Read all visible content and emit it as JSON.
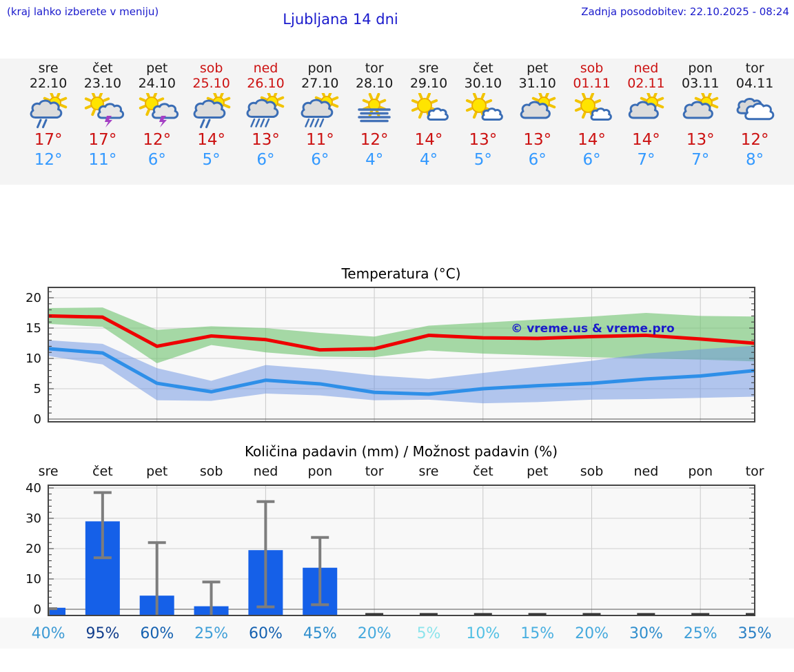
{
  "header": {
    "hint": "(kraj lahko izberete v meniju)",
    "title": "Ljubljana 14 dni",
    "updated": "Zadnja posodobitev: 22.10.2025 - 08:24"
  },
  "colors": {
    "link_blue": "#1a1acc",
    "weekend_red": "#cc1111",
    "tmax_red": "#cc1111",
    "tmin_blue": "#3399ff",
    "strip_bg": "#f4f4f4",
    "plot_bg": "#f8f8f8",
    "grid": "#d0d0d0",
    "border": "#444444",
    "zero_line": "#555555",
    "bar_blue": "#1560e8",
    "error_gray": "#7d7d7d",
    "zero_dash": "#333333",
    "cloud_outline": "#3a6db5",
    "sun_yellow": "#ffe400",
    "lightning_purple": "#a43fc4"
  },
  "forecast": {
    "days": [
      {
        "name": "sre",
        "date": "22.10",
        "weekend": false,
        "icon": "sun-cloud-rain",
        "tmax": "17°",
        "tmin": "12°"
      },
      {
        "name": "čet",
        "date": "23.10",
        "weekend": false,
        "icon": "sun-cloud-storm",
        "tmax": "17°",
        "tmin": "11°"
      },
      {
        "name": "pet",
        "date": "24.10",
        "weekend": false,
        "icon": "sun-cloud-storm",
        "tmax": "12°",
        "tmin": "6°"
      },
      {
        "name": "sob",
        "date": "25.10",
        "weekend": true,
        "icon": "sun-cloud-rain",
        "tmax": "14°",
        "tmin": "5°"
      },
      {
        "name": "ned",
        "date": "26.10",
        "weekend": true,
        "icon": "sun-cloud-heavy-rain",
        "tmax": "13°",
        "tmin": "6°"
      },
      {
        "name": "pon",
        "date": "27.10",
        "weekend": false,
        "icon": "sun-cloud-heavy-rain",
        "tmax": "11°",
        "tmin": "6°"
      },
      {
        "name": "tor",
        "date": "28.10",
        "weekend": false,
        "icon": "fog",
        "tmax": "12°",
        "tmin": "4°"
      },
      {
        "name": "sre",
        "date": "29.10",
        "weekend": false,
        "icon": "mostly-sunny",
        "tmax": "14°",
        "tmin": "4°"
      },
      {
        "name": "čet",
        "date": "30.10",
        "weekend": false,
        "icon": "mostly-sunny",
        "tmax": "13°",
        "tmin": "5°"
      },
      {
        "name": "pet",
        "date": "31.10",
        "weekend": false,
        "icon": "partly-cloudy",
        "tmax": "13°",
        "tmin": "6°"
      },
      {
        "name": "sob",
        "date": "01.11",
        "weekend": true,
        "icon": "mostly-sunny",
        "tmax": "14°",
        "tmin": "6°"
      },
      {
        "name": "ned",
        "date": "02.11",
        "weekend": true,
        "icon": "partly-cloudy",
        "tmax": "14°",
        "tmin": "7°"
      },
      {
        "name": "pon",
        "date": "03.11",
        "weekend": false,
        "icon": "partly-cloudy",
        "tmax": "13°",
        "tmin": "7°"
      },
      {
        "name": "tor",
        "date": "04.11",
        "weekend": false,
        "icon": "cloudy",
        "tmax": "12°",
        "tmin": "8°"
      }
    ]
  },
  "chart_data": [
    {
      "type": "line",
      "title": "Temperatura (°C)",
      "watermark": "© vreme.us & vreme.pro",
      "x_labels": [
        "sre",
        "čet",
        "pet",
        "sob",
        "ned",
        "pon",
        "tor",
        "sre",
        "čet",
        "pet",
        "sob",
        "ned",
        "pon",
        "tor"
      ],
      "ylim": [
        -0.45,
        21.7
      ],
      "yticks": [
        0,
        5,
        10,
        15,
        20
      ],
      "grid": true,
      "series": [
        {
          "name": "temp-max",
          "color": "#ee0000",
          "values": [
            17.0,
            16.8,
            12.0,
            13.7,
            13.1,
            11.4,
            11.6,
            13.8,
            13.4,
            13.3,
            13.6,
            13.8,
            13.2,
            12.5
          ]
        },
        {
          "name": "temp-min",
          "color": "#2e8fe8",
          "values": [
            11.6,
            10.9,
            5.9,
            4.5,
            6.4,
            5.8,
            4.4,
            4.1,
            5.0,
            5.5,
            5.9,
            6.6,
            7.1,
            8.0
          ]
        }
      ],
      "bands": [
        {
          "name": "temp-max-range",
          "color": "rgba(110,195,110,0.6)",
          "upper": [
            18.3,
            18.4,
            14.7,
            15.3,
            15.0,
            14.2,
            13.6,
            15.4,
            15.9,
            16.4,
            16.9,
            17.5,
            17.0,
            16.9
          ],
          "lower": [
            15.7,
            15.2,
            9.2,
            12.2,
            11.0,
            10.3,
            10.2,
            11.3,
            10.8,
            10.5,
            10.2,
            10.0,
            9.8,
            9.5
          ]
        },
        {
          "name": "temp-min-range",
          "color": "rgba(105,145,225,0.5)",
          "upper": [
            13.0,
            12.4,
            8.4,
            6.3,
            8.9,
            8.2,
            7.2,
            6.6,
            7.6,
            8.6,
            9.6,
            10.8,
            11.5,
            12.1
          ],
          "lower": [
            10.4,
            9.0,
            3.1,
            3.0,
            4.2,
            3.9,
            3.1,
            3.2,
            2.6,
            2.8,
            3.2,
            3.3,
            3.5,
            3.7
          ]
        }
      ]
    },
    {
      "type": "bar",
      "title": "Količina padavin (mm) / Možnost padavin (%)",
      "categories": [
        "sre",
        "čet",
        "pet",
        "sob",
        "ned",
        "pon",
        "tor",
        "sre",
        "čet",
        "pet",
        "sob",
        "ned",
        "pon",
        "tor"
      ],
      "ylim": [
        -2,
        41.5
      ],
      "yticks": [
        0,
        10,
        20,
        30,
        40
      ],
      "grid": true,
      "values": [
        0.5,
        29,
        4.5,
        1,
        19.5,
        13.7,
        0,
        0,
        0,
        0,
        0,
        0,
        0,
        0
      ],
      "error_low": [
        -2,
        17,
        -2,
        -2,
        0.8,
        1.5,
        null,
        null,
        null,
        null,
        null,
        null,
        null,
        null
      ],
      "error_high": [
        0.2,
        38.5,
        22,
        9,
        35.5,
        23.7,
        null,
        null,
        null,
        null,
        null,
        null,
        null,
        null
      ],
      "percents": [
        "40%",
        "95%",
        "60%",
        "25%",
        "60%",
        "45%",
        "20%",
        "5%",
        "10%",
        "15%",
        "20%",
        "30%",
        "25%",
        "35%"
      ],
      "percent_colors": [
        "#3d9ad4",
        "#123e8c",
        "#1561b0",
        "#3f9fd8",
        "#1561b0",
        "#2e8ecd",
        "#45a9dd",
        "#8ce4ec",
        "#52c0e4",
        "#49afe0",
        "#45a9dd",
        "#2f8ecd",
        "#3f9fd8",
        "#2a80c5"
      ]
    }
  ]
}
